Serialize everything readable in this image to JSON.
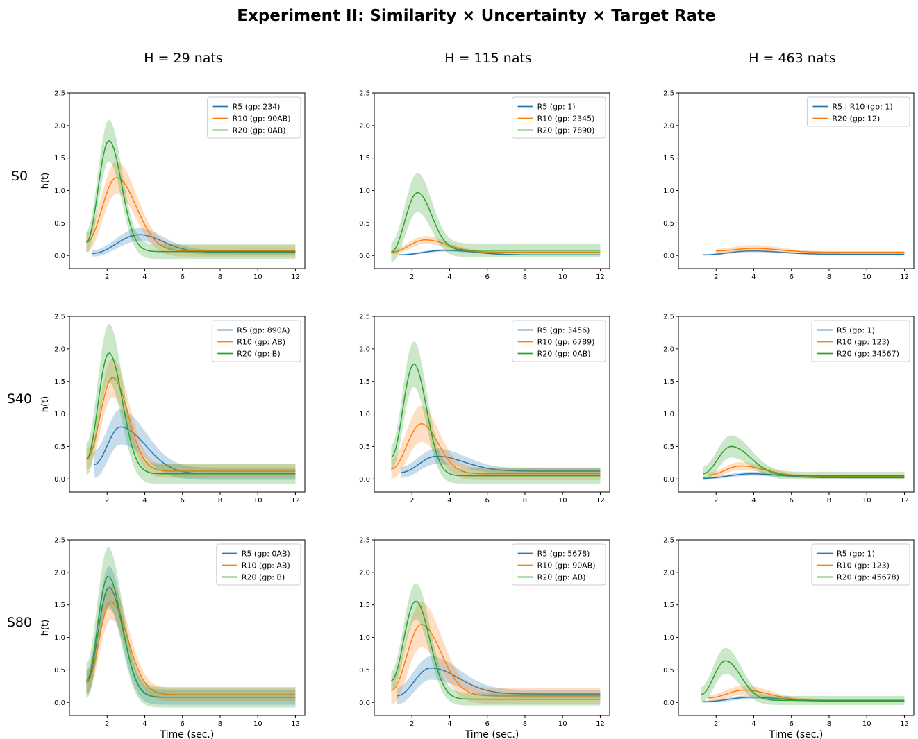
{
  "figure": {
    "title": "Experiment II: Similarity × Uncertainty × Target Rate",
    "col_titles": [
      "H = 29 nats",
      "H = 115 nats",
      "H = 463 nats"
    ],
    "row_labels": [
      "S0",
      "S40",
      "S80"
    ],
    "ylabel": "h(t)",
    "xlabel": "Time (sec.)"
  },
  "colors": {
    "R5": "#1f77b4",
    "R10": "#ff7f0e",
    "R20": "#2ca02c"
  },
  "chart_data": [
    {
      "type": "line",
      "panel": "S0 / H = 29 nats",
      "xlim": [
        0.0,
        12.5
      ],
      "ylim": [
        -0.2,
        2.5
      ],
      "xticks": [
        2,
        4,
        6,
        8,
        10,
        12
      ],
      "yticks": [
        0.0,
        0.5,
        1.0,
        1.5,
        2.0,
        2.5
      ],
      "xlabel": "",
      "ylabel": "h(t)",
      "legend": "top-right",
      "series": [
        {
          "name": "R5 (gp: 234)",
          "color": "R5",
          "peak": 0.32,
          "peak_t": 3.7,
          "start_t": 1.2,
          "start": 0.03,
          "tail": 0.05,
          "rise": 1.7,
          "decay": 1.7,
          "band": 0.1
        },
        {
          "name": "R10 (gp: 90AB)",
          "color": "R10",
          "peak": 1.2,
          "peak_t": 2.5,
          "start_t": 0.9,
          "start": 0.2,
          "tail": 0.07,
          "rise": 0.8,
          "decay": 1.4,
          "band": 0.25
        },
        {
          "name": "R20 (gp: 0AB)",
          "color": "R20",
          "peak": 1.77,
          "peak_t": 2.1,
          "start_t": 0.9,
          "start": 0.2,
          "tail": 0.06,
          "rise": 0.55,
          "decay": 0.9,
          "band": 0.32
        }
      ]
    },
    {
      "type": "line",
      "panel": "S0 / H = 115 nats",
      "xlim": [
        0.0,
        12.5
      ],
      "ylim": [
        -0.2,
        2.5
      ],
      "xticks": [
        2,
        4,
        6,
        8,
        10,
        12
      ],
      "yticks": [
        0.0,
        0.5,
        1.0,
        1.5,
        2.0,
        2.5
      ],
      "xlabel": "",
      "ylabel": "",
      "legend": "top-right",
      "series": [
        {
          "name": "R5 (gp: 1)",
          "color": "R5",
          "peak": 0.08,
          "peak_t": 3.8,
          "start_t": 1.3,
          "start": 0.01,
          "tail": 0.01,
          "rise": 1.5,
          "decay": 2.0,
          "band": 0.02
        },
        {
          "name": "R10 (gp: 2345)",
          "color": "R10",
          "peak": 0.24,
          "peak_t": 2.7,
          "start_t": 0.9,
          "start": 0.05,
          "tail": 0.05,
          "rise": 1.0,
          "decay": 1.6,
          "band": 0.06
        },
        {
          "name": "R20 (gp: 7890)",
          "color": "R20",
          "peak": 0.97,
          "peak_t": 2.3,
          "start_t": 0.9,
          "start": 0.05,
          "tail": 0.08,
          "rise": 0.65,
          "decay": 1.0,
          "band": 0.3
        }
      ]
    },
    {
      "type": "line",
      "panel": "S0 / H = 463 nats",
      "xlim": [
        0.0,
        12.5
      ],
      "ylim": [
        -0.2,
        2.5
      ],
      "xticks": [
        2,
        4,
        6,
        8,
        10,
        12
      ],
      "yticks": [
        0.0,
        0.5,
        1.0,
        1.5,
        2.0,
        2.5
      ],
      "xlabel": "",
      "ylabel": "",
      "legend": "top-right",
      "series": [
        {
          "name": "R5 | R10 (gp: 1)",
          "color": "R5",
          "peak": 0.07,
          "peak_t": 3.9,
          "start_t": 1.3,
          "start": 0.01,
          "tail": 0.02,
          "rise": 1.5,
          "decay": 2.0,
          "band": 0.02
        },
        {
          "name": "R20 (gp: 12)",
          "color": "R10",
          "peak": 0.11,
          "peak_t": 4.0,
          "start_t": 2.0,
          "start": 0.07,
          "tail": 0.05,
          "rise": 1.2,
          "decay": 1.8,
          "band": 0.05
        }
      ]
    },
    {
      "type": "line",
      "panel": "S40 / H = 29 nats",
      "xlim": [
        0.0,
        12.5
      ],
      "ylim": [
        -0.2,
        2.5
      ],
      "xticks": [
        2,
        4,
        6,
        8,
        10,
        12
      ],
      "yticks": [
        0.0,
        0.5,
        1.0,
        1.5,
        2.0,
        2.5
      ],
      "xlabel": "",
      "ylabel": "h(t)",
      "legend": "top-right",
      "series": [
        {
          "name": "R5 (gp: 890A)",
          "color": "R5",
          "peak": 0.8,
          "peak_t": 2.7,
          "start_t": 1.3,
          "start": 0.22,
          "tail": 0.08,
          "rise": 0.8,
          "decay": 1.8,
          "band": 0.27
        },
        {
          "name": "R10 (gp: AB)",
          "color": "R10",
          "peak": 1.56,
          "peak_t": 2.3,
          "start_t": 0.9,
          "start": 0.3,
          "tail": 0.12,
          "rise": 0.6,
          "decay": 1.1,
          "band": 0.3
        },
        {
          "name": "R20 (gp: B)",
          "color": "R20",
          "peak": 1.94,
          "peak_t": 2.1,
          "start_t": 0.9,
          "start": 0.3,
          "tail": 0.08,
          "rise": 0.55,
          "decay": 0.95,
          "band": 0.45
        }
      ]
    },
    {
      "type": "line",
      "panel": "S40 / H = 115 nats",
      "xlim": [
        0.0,
        12.5
      ],
      "ylim": [
        -0.2,
        2.5
      ],
      "xticks": [
        2,
        4,
        6,
        8,
        10,
        12
      ],
      "yticks": [
        0.0,
        0.5,
        1.0,
        1.5,
        2.0,
        2.5
      ],
      "xlabel": "",
      "ylabel": "",
      "legend": "top-right",
      "series": [
        {
          "name": "R5 (gp: 3456)",
          "color": "R5",
          "peak": 0.35,
          "peak_t": 3.3,
          "start_t": 1.4,
          "start": 0.1,
          "tail": 0.12,
          "rise": 1.0,
          "decay": 2.0,
          "band": 0.12
        },
        {
          "name": "R10 (gp: 6789)",
          "color": "R10",
          "peak": 0.85,
          "peak_t": 2.5,
          "start_t": 0.9,
          "start": 0.15,
          "tail": 0.08,
          "rise": 0.7,
          "decay": 1.2,
          "band": 0.28
        },
        {
          "name": "R20 (gp: 0AB)",
          "color": "R20",
          "peak": 1.77,
          "peak_t": 2.1,
          "start_t": 0.9,
          "start": 0.33,
          "tail": 0.05,
          "rise": 0.55,
          "decay": 0.9,
          "band": 0.35
        }
      ]
    },
    {
      "type": "line",
      "panel": "S40 / H = 463 nats",
      "xlim": [
        0.0,
        12.5
      ],
      "ylim": [
        -0.2,
        2.5
      ],
      "xticks": [
        2,
        4,
        6,
        8,
        10,
        12
      ],
      "yticks": [
        0.0,
        0.5,
        1.0,
        1.5,
        2.0,
        2.5
      ],
      "xlabel": "",
      "ylabel": "",
      "legend": "top-right",
      "series": [
        {
          "name": "R5 (gp: 1)",
          "color": "R5",
          "peak": 0.08,
          "peak_t": 3.9,
          "start_t": 1.3,
          "start": 0.01,
          "tail": 0.02,
          "rise": 1.5,
          "decay": 2.0,
          "band": 0.03
        },
        {
          "name": "R10 (gp: 123)",
          "color": "R10",
          "peak": 0.2,
          "peak_t": 3.3,
          "start_t": 1.6,
          "start": 0.06,
          "tail": 0.04,
          "rise": 1.0,
          "decay": 1.8,
          "band": 0.06
        },
        {
          "name": "R20 (gp: 34567)",
          "color": "R20",
          "peak": 0.5,
          "peak_t": 2.8,
          "start_t": 1.3,
          "start": 0.08,
          "tail": 0.05,
          "rise": 0.8,
          "decay": 1.4,
          "band": 0.17
        }
      ]
    },
    {
      "type": "line",
      "panel": "S80 / H = 29 nats",
      "xlim": [
        0.0,
        12.5
      ],
      "ylim": [
        -0.2,
        2.5
      ],
      "xticks": [
        2,
        4,
        6,
        8,
        10,
        12
      ],
      "yticks": [
        0.0,
        0.5,
        1.0,
        1.5,
        2.0,
        2.5
      ],
      "xlabel": "Time (sec.)",
      "ylabel": "h(t)",
      "legend": "top-right",
      "series": [
        {
          "name": "R5 (gp: 0AB)",
          "color": "R5",
          "peak": 1.77,
          "peak_t": 2.1,
          "start_t": 0.9,
          "start": 0.3,
          "tail": 0.08,
          "rise": 0.55,
          "decay": 1.0,
          "band": 0.33
        },
        {
          "name": "R10 (gp: AB)",
          "color": "R10",
          "peak": 1.55,
          "peak_t": 2.2,
          "start_t": 0.9,
          "start": 0.3,
          "tail": 0.12,
          "rise": 0.6,
          "decay": 1.2,
          "band": 0.28
        },
        {
          "name": "R20 (gp: B)",
          "color": "R20",
          "peak": 1.94,
          "peak_t": 2.05,
          "start_t": 0.9,
          "start": 0.33,
          "tail": 0.08,
          "rise": 0.55,
          "decay": 1.0,
          "band": 0.45
        }
      ]
    },
    {
      "type": "line",
      "panel": "S80 / H = 115 nats",
      "xlim": [
        0.0,
        12.5
      ],
      "ylim": [
        -0.2,
        2.5
      ],
      "xticks": [
        2,
        4,
        6,
        8,
        10,
        12
      ],
      "yticks": [
        0.0,
        0.5,
        1.0,
        1.5,
        2.0,
        2.5
      ],
      "xlabel": "Time (sec.)",
      "ylabel": "",
      "legend": "top-right",
      "series": [
        {
          "name": "R5 (gp: 5678)",
          "color": "R5",
          "peak": 0.53,
          "peak_t": 3.0,
          "start_t": 1.2,
          "start": 0.1,
          "tail": 0.13,
          "rise": 0.9,
          "decay": 2.0,
          "band": 0.18
        },
        {
          "name": "R10 (gp: 90AB)",
          "color": "R10",
          "peak": 1.2,
          "peak_t": 2.5,
          "start_t": 0.9,
          "start": 0.18,
          "tail": 0.1,
          "rise": 0.7,
          "decay": 1.4,
          "band": 0.35
        },
        {
          "name": "R20 (gp: AB)",
          "color": "R20",
          "peak": 1.56,
          "peak_t": 2.2,
          "start_t": 0.9,
          "start": 0.33,
          "tail": 0.05,
          "rise": 0.6,
          "decay": 1.0,
          "band": 0.28
        }
      ]
    },
    {
      "type": "line",
      "panel": "S80 / H = 463 nats",
      "xlim": [
        0.0,
        12.5
      ],
      "ylim": [
        -0.2,
        2.5
      ],
      "xticks": [
        2,
        4,
        6,
        8,
        10,
        12
      ],
      "yticks": [
        0.0,
        0.5,
        1.0,
        1.5,
        2.0,
        2.5
      ],
      "xlabel": "Time (sec.)",
      "ylabel": "",
      "legend": "top-right",
      "series": [
        {
          "name": "R5 (gp: 1)",
          "color": "R5",
          "peak": 0.08,
          "peak_t": 3.9,
          "start_t": 1.3,
          "start": 0.01,
          "tail": 0.02,
          "rise": 1.5,
          "decay": 2.0,
          "band": 0.03
        },
        {
          "name": "R10 (gp: 123)",
          "color": "R10",
          "peak": 0.19,
          "peak_t": 3.5,
          "start_t": 1.6,
          "start": 0.07,
          "tail": 0.03,
          "rise": 1.0,
          "decay": 1.8,
          "band": 0.07
        },
        {
          "name": "R20 (gp: 45678)",
          "color": "R20",
          "peak": 0.64,
          "peak_t": 2.5,
          "start_t": 1.2,
          "start": 0.12,
          "tail": 0.03,
          "rise": 0.7,
          "decay": 1.1,
          "band": 0.2
        }
      ]
    }
  ]
}
